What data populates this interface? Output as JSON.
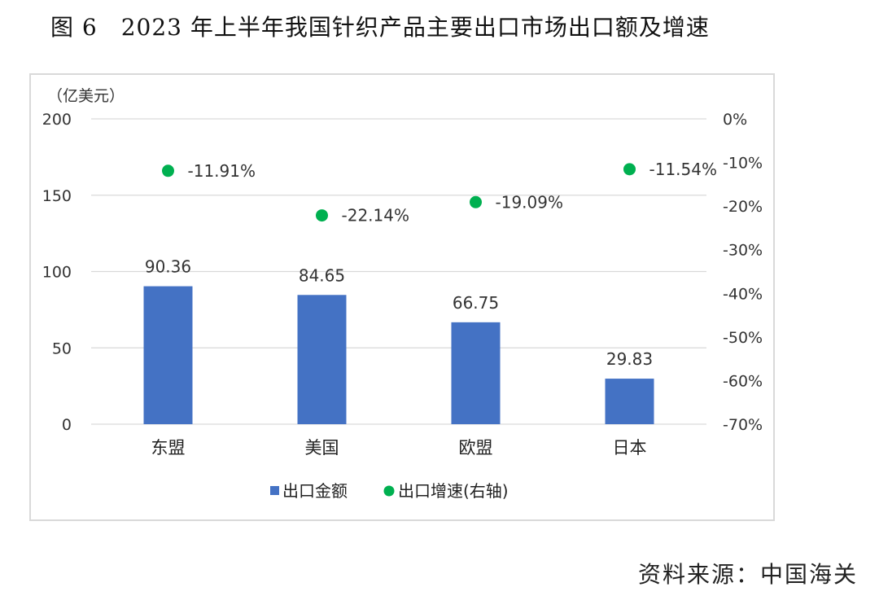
{
  "title": "图 6　2023 年上半年我国针织产品主要出口市场出口额及增速",
  "source": "资料来源：中国海关",
  "colors": {
    "bar": "#4472C4",
    "dot": "#00B050",
    "grid": "#d9d9d9"
  },
  "chart_data": {
    "type": "bar",
    "categories": [
      "东盟",
      "美国",
      "欧盟",
      "日本"
    ],
    "series": [
      {
        "name": "出口金额",
        "type": "bar",
        "axis": "left",
        "values": [
          90.36,
          84.65,
          66.75,
          29.83
        ],
        "labels": [
          "90.36",
          "84.65",
          "66.75",
          "29.83"
        ]
      },
      {
        "name": "出口增速(右轴)",
        "type": "scatter",
        "axis": "right",
        "values": [
          -11.91,
          -22.14,
          -19.09,
          -11.54
        ],
        "labels": [
          "-11.91%",
          "-22.14%",
          "-19.09%",
          "-11.54%"
        ]
      }
    ],
    "y_left": {
      "unit": "（亿美元）",
      "range": [
        0,
        200
      ],
      "ticks": [
        "0",
        "50",
        "100",
        "150",
        "200"
      ]
    },
    "y_right": {
      "range": [
        -70,
        0
      ],
      "ticks": [
        "0%",
        "-10%",
        "-20%",
        "-30%",
        "-40%",
        "-50%",
        "-60%",
        "-70%"
      ]
    },
    "grid": true,
    "legend": "bottom"
  }
}
